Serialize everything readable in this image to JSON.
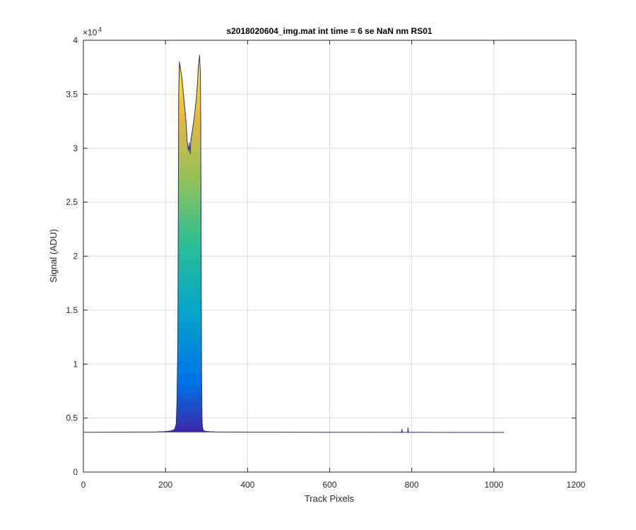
{
  "chart_data": {
    "type": "line",
    "title": "s2018020604_img.mat int time = 6 se  NaN nm RS01",
    "xlabel": "Track Pixels",
    "ylabel": "Signal (ADU)",
    "xlim": [
      0,
      1200
    ],
    "ylim": [
      0,
      40000
    ],
    "xticks": [
      0,
      200,
      400,
      600,
      800,
      1000,
      1200
    ],
    "xtick_labels": [
      "0",
      "200",
      "400",
      "600",
      "800",
      "1000",
      "1200"
    ],
    "yticks": [
      0,
      5000,
      10000,
      15000,
      20000,
      25000,
      30000,
      35000,
      40000
    ],
    "ytick_labels": [
      "0",
      "0.5",
      "1",
      "1.5",
      "2",
      "2.5",
      "3",
      "3.5",
      "4"
    ],
    "y_exponent_base": "×10",
    "y_exponent_power": "4",
    "grid": true,
    "colormap": [
      "#3e26a8",
      "#0072e6",
      "#06a7c6",
      "#2bbe94",
      "#8cc25c",
      "#e8b83a",
      "#f9fb0e"
    ],
    "series": [
      {
        "x": [
          0,
          100,
          180,
          200,
          215,
          222,
          226,
          228,
          230,
          231,
          232,
          234,
          236,
          240,
          245,
          250,
          253,
          256,
          258,
          260,
          262,
          265,
          270,
          275,
          278,
          280,
          283,
          285,
          286,
          287,
          288,
          289,
          290,
          292,
          295,
          300,
          320,
          400,
          500,
          600,
          700,
          775,
          776,
          777,
          790,
          791,
          792,
          800,
          900,
          1000,
          1024
        ],
        "y": [
          3680,
          3700,
          3720,
          3760,
          3820,
          3950,
          4400,
          6500,
          12000,
          22000,
          35000,
          38000,
          37500,
          36500,
          34500,
          32500,
          30500,
          29800,
          30500,
          29500,
          30800,
          31500,
          32800,
          34500,
          36000,
          37500,
          38600,
          37000,
          32000,
          20000,
          9000,
          5000,
          4200,
          3900,
          3800,
          3760,
          3720,
          3700,
          3690,
          3685,
          3680,
          3680,
          3950,
          3680,
          3680,
          4100,
          3680,
          3680,
          3675,
          3670,
          3670
        ]
      }
    ]
  }
}
